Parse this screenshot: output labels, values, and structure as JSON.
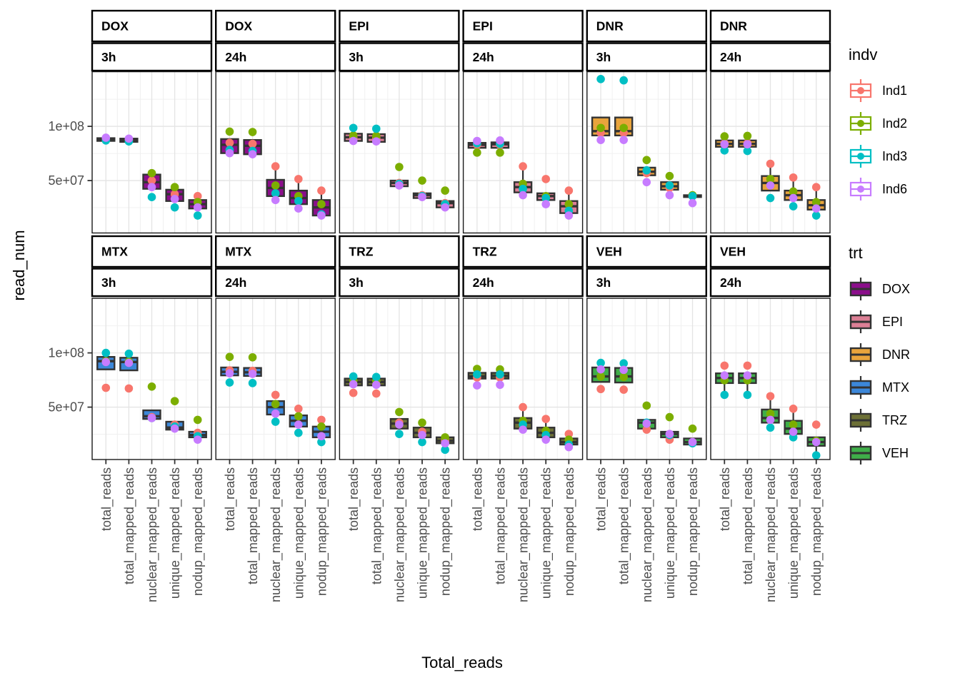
{
  "chart_data": {
    "type": "boxplot",
    "facet_grid": {
      "rows": 2,
      "cols": 6,
      "strip_levels": [
        "treatment",
        "time"
      ]
    },
    "ylabel": "read_num",
    "xlabel": "Total_reads",
    "y_scale": "log10",
    "values_unit": "millions of reads (1e+06)",
    "y_axis": {
      "ticks": [
        {
          "label": "1e+08",
          "value": 100
        },
        {
          "label": "5e+07",
          "value": 50
        }
      ],
      "minor_gridline_values": [
        141.4,
        70.7,
        35.4
      ],
      "range_millions": [
        25.6,
        201
      ]
    },
    "categories": [
      "total_reads",
      "total_mapped_reads",
      "nuclear_mapped_reads",
      "unique_mapped_reads",
      "nodup_mapped_reads"
    ],
    "individuals": [
      {
        "id": "Ind1",
        "color": "#F8766D"
      },
      {
        "id": "Ind2",
        "color": "#7CAE00"
      },
      {
        "id": "Ind3",
        "color": "#00BFC4"
      },
      {
        "id": "Ind6",
        "color": "#C77CFF"
      }
    ],
    "treatments": [
      {
        "id": "DOX",
        "color": "#8B0E8B"
      },
      {
        "id": "EPI",
        "color": "#DC7F95"
      },
      {
        "id": "DNR",
        "color": "#E9A43C"
      },
      {
        "id": "MTX",
        "color": "#3C87D9"
      },
      {
        "id": "TRZ",
        "color": "#6D7036"
      },
      {
        "id": "VEH",
        "color": "#3FAE49"
      }
    ],
    "legend": {
      "indv_title": "indv",
      "trt_title": "trt"
    },
    "style": {
      "box_stroke": "#333333",
      "panel_border": "#1a1a1a",
      "strip_border": "#000000",
      "grid_major": "#e4e4e4",
      "grid_minor": "#f0f0f0",
      "tick_label_color": "#4d4d4d"
    },
    "facets": [
      {
        "trt": "DOX",
        "time": "3h",
        "boxes": [
          [
            83,
            83,
            84.5,
            86,
            86
          ],
          [
            82,
            82,
            84,
            85.5,
            85.5
          ],
          [
            45,
            45,
            49,
            54,
            54
          ],
          [
            38.5,
            38.5,
            42,
            44.5,
            44.5
          ],
          [
            35,
            35,
            37,
            39,
            39
          ]
        ],
        "points": [
          [
            84.5,
            84,
            83.5,
            86.5
          ],
          [
            84,
            83,
            82.5,
            85.5
          ],
          [
            50,
            55,
            40.5,
            46
          ],
          [
            42,
            46,
            35.5,
            39.5
          ],
          [
            41,
            38,
            32,
            35.5
          ]
        ]
      },
      {
        "trt": "DOX",
        "time": "24h",
        "boxes": [
          [
            71,
            71,
            79,
            85,
            85
          ],
          [
            70,
            70,
            78,
            84,
            84
          ],
          [
            41,
            41,
            45.5,
            50.5,
            60
          ],
          [
            37,
            37,
            40,
            44,
            51
          ],
          [
            32,
            32,
            35.5,
            39,
            44
          ]
        ],
        "points": [
          [
            81,
            93.5,
            74,
            71
          ],
          [
            80,
            93,
            73,
            70
          ],
          [
            60,
            47,
            42.5,
            39
          ],
          [
            51,
            41,
            38.5,
            35
          ],
          [
            44,
            37,
            32.5,
            32
          ]
        ]
      },
      {
        "trt": "EPI",
        "time": "3h",
        "boxes": [
          [
            83,
            83,
            87,
            91,
            91
          ],
          [
            82,
            82,
            86.5,
            90.5,
            90.5
          ],
          [
            46.5,
            46.5,
            48.5,
            50,
            50
          ],
          [
            40,
            40,
            41.5,
            42.5,
            42.5
          ],
          [
            35.5,
            35.5,
            37.5,
            38.5,
            38.5
          ]
        ],
        "points": [
          [
            87,
            89,
            98,
            83
          ],
          [
            86,
            88.5,
            97,
            82.5
          ],
          [
            48.5,
            59.5,
            48,
            47
          ],
          [
            41.5,
            50,
            41,
            40.5
          ],
          [
            37.5,
            44,
            37,
            35.5
          ]
        ]
      },
      {
        "trt": "EPI",
        "time": "24h",
        "boxes": [
          [
            76,
            76,
            79,
            81,
            81
          ],
          [
            76,
            76,
            79.5,
            81.5,
            81.5
          ],
          [
            43,
            43,
            46,
            49,
            60
          ],
          [
            39,
            39,
            41,
            42.5,
            42.5
          ],
          [
            33,
            33,
            36,
            38.5,
            44
          ]
        ],
        "points": [
          [
            79,
            71.5,
            80.5,
            83
          ],
          [
            79,
            71.5,
            80,
            83.5
          ],
          [
            60,
            48,
            45,
            41.5
          ],
          [
            51,
            41,
            40,
            37
          ],
          [
            44,
            37,
            34,
            32
          ]
        ]
      },
      {
        "trt": "DNR",
        "time": "3h",
        "boxes": [
          [
            89,
            89,
            94,
            112,
            112
          ],
          [
            89,
            89,
            94,
            112,
            112
          ],
          [
            53.5,
            53.5,
            56,
            59,
            59
          ],
          [
            44.5,
            44.5,
            46.5,
            49,
            49
          ],
          [
            40.5,
            40.5,
            41,
            41.5,
            41.5
          ]
        ],
        "points": [
          [
            92,
            98,
            183,
            84
          ],
          [
            92,
            98,
            180,
            84
          ],
          [
            55,
            65,
            57,
            49
          ],
          [
            45.5,
            53,
            47,
            41.5
          ],
          [
            41,
            41.5,
            41,
            37.5
          ]
        ]
      },
      {
        "trt": "DNR",
        "time": "24h",
        "boxes": [
          [
            77,
            77,
            80,
            83.5,
            83.5
          ],
          [
            77,
            77,
            80,
            83.5,
            83.5
          ],
          [
            44,
            44,
            48.5,
            53,
            62
          ],
          [
            39,
            39,
            41.5,
            44,
            52
          ],
          [
            34.5,
            34.5,
            36.5,
            39,
            46
          ]
        ],
        "points": [
          [
            80.5,
            88,
            73.5,
            79.5
          ],
          [
            80.5,
            88.5,
            73,
            79.5
          ],
          [
            62,
            51,
            40,
            47
          ],
          [
            52,
            43.5,
            36,
            40
          ],
          [
            46,
            38,
            32,
            35
          ]
        ]
      },
      {
        "trt": "MTX",
        "time": "3h",
        "boxes": [
          [
            81,
            81,
            90,
            95,
            95
          ],
          [
            80,
            80,
            89,
            94,
            94
          ],
          [
            43,
            43,
            44.5,
            48,
            48
          ],
          [
            37.5,
            37.5,
            38.5,
            41.5,
            41.5
          ],
          [
            34,
            34,
            35,
            36.5,
            36.5
          ]
        ],
        "points": [
          [
            64,
            90,
            100,
            89
          ],
          [
            63.5,
            89.5,
            99,
            88
          ],
          [
            44,
            65,
            43.5,
            43.5
          ],
          [
            40,
            54,
            39,
            38
          ],
          [
            36,
            42.5,
            34.5,
            33
          ]
        ]
      },
      {
        "trt": "MTX",
        "time": "24h",
        "boxes": [
          [
            75,
            75,
            78.5,
            83,
            83
          ],
          [
            74.5,
            74.5,
            78,
            82.5,
            82.5
          ],
          [
            45.5,
            45.5,
            50,
            54,
            54
          ],
          [
            39,
            39,
            42,
            45,
            45
          ],
          [
            34,
            34,
            36.5,
            39,
            39
          ]
        ],
        "points": [
          [
            80,
            95,
            68.5,
            77
          ],
          [
            79.5,
            94.5,
            68,
            76.5
          ],
          [
            58.5,
            52,
            41.5,
            46
          ],
          [
            49,
            44.5,
            36,
            40
          ],
          [
            42.5,
            39,
            32,
            34.5
          ]
        ]
      },
      {
        "trt": "TRZ",
        "time": "3h",
        "boxes": [
          [
            66,
            66,
            69,
            72,
            72
          ],
          [
            66,
            66,
            69,
            72,
            72
          ],
          [
            38,
            38,
            40.5,
            43,
            43
          ],
          [
            34,
            34,
            36,
            38.5,
            38.5
          ],
          [
            31.5,
            31.5,
            32.5,
            34,
            34
          ]
        ],
        "points": [
          [
            60,
            70,
            74,
            67
          ],
          [
            59.5,
            70,
            73.5,
            66.5
          ],
          [
            41,
            47,
            35.5,
            40
          ],
          [
            36.5,
            41,
            32,
            35
          ],
          [
            32.5,
            34,
            29,
            31.5
          ]
        ]
      },
      {
        "trt": "TRZ",
        "time": "24h",
        "boxes": [
          [
            72,
            72,
            74,
            77.5,
            77.5
          ],
          [
            72,
            72,
            74.5,
            77.5,
            77.5
          ],
          [
            38,
            38,
            41,
            43.5,
            50
          ],
          [
            34,
            34,
            36,
            38.5,
            43
          ],
          [
            31,
            31,
            32,
            33.5,
            33.5
          ]
        ],
        "points": [
          [
            73,
            81.5,
            76,
            66
          ],
          [
            73,
            81,
            76,
            66.5
          ],
          [
            50,
            42,
            40,
            37.5
          ],
          [
            43,
            37,
            35,
            33
          ],
          [
            35.5,
            33,
            31,
            30
          ]
        ]
      },
      {
        "trt": "VEH",
        "time": "3h",
        "boxes": [
          [
            69,
            69,
            74,
            83,
            83
          ],
          [
            68.5,
            68.5,
            74,
            82.5,
            82.5
          ],
          [
            38,
            38,
            41,
            42.5,
            42.5
          ],
          [
            34,
            34,
            35.5,
            36.5,
            36.5
          ],
          [
            31,
            31,
            32,
            33.5,
            33.5
          ]
        ],
        "points": [
          [
            63,
            74,
            88,
            81
          ],
          [
            62.5,
            73.5,
            87.5,
            80.5
          ],
          [
            37.5,
            51,
            41,
            40.5
          ],
          [
            33,
            44,
            35,
            35.5
          ],
          [
            32,
            38,
            31.5,
            32
          ]
        ]
      },
      {
        "trt": "VEH",
        "time": "24h",
        "boxes": [
          [
            58.5,
            68,
            72.5,
            77,
            77
          ],
          [
            58.5,
            68,
            72.5,
            77,
            77
          ],
          [
            41,
            41,
            43.5,
            48.5,
            57.5
          ],
          [
            35.5,
            35.5,
            38,
            42,
            49
          ],
          [
            27,
            30.5,
            32,
            34,
            34
          ]
        ],
        "points": [
          [
            85,
            70.5,
            58.5,
            75
          ],
          [
            85,
            70.5,
            58.5,
            75
          ],
          [
            57.5,
            46,
            38.5,
            42.5
          ],
          [
            49,
            40,
            34,
            36.5
          ],
          [
            40,
            32.5,
            27,
            32
          ]
        ]
      }
    ]
  }
}
